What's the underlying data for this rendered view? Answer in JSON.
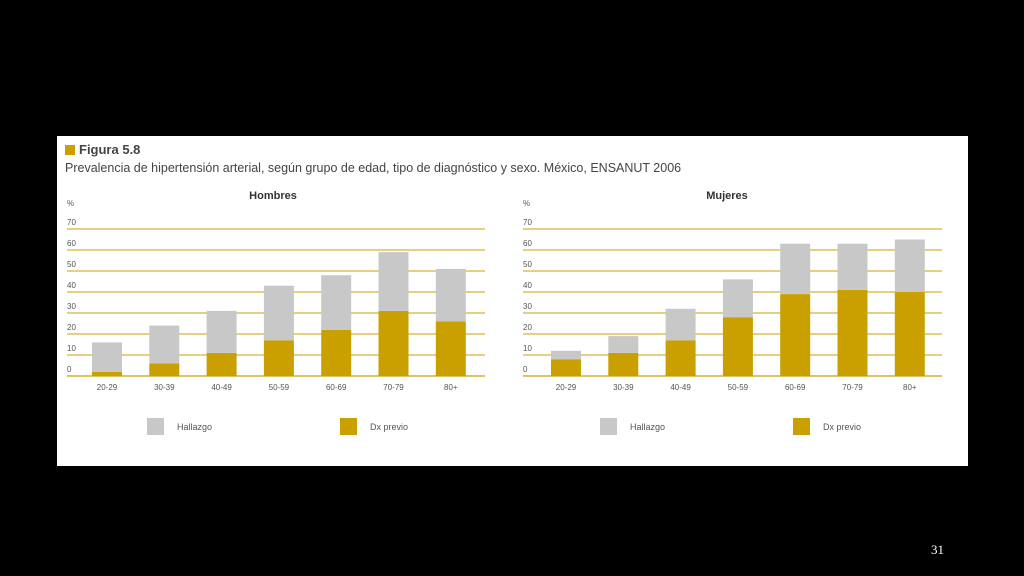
{
  "figure": {
    "label": "Figura 5.8",
    "subtitle": "Prevalencia de hipertensión arterial, según grupo de edad, tipo de diagnóstico y sexo. México, ENSANUT 2006"
  },
  "page_number": "31",
  "colors": {
    "hallazgo": "#c8c8c8",
    "dx_previo": "#c9a000",
    "grid": "#c9a000",
    "background": "#000000"
  },
  "chart_data": [
    {
      "type": "bar",
      "stacked": true,
      "title": "Hombres",
      "ylabel": "%",
      "ylim": [
        0,
        70
      ],
      "yticks": [
        0,
        10,
        20,
        30,
        40,
        50,
        60,
        70
      ],
      "categories": [
        "20-29",
        "30-39",
        "40-49",
        "50-59",
        "60-69",
        "70-79",
        "80+"
      ],
      "series": [
        {
          "name": "Hallazgo",
          "values": [
            14,
            18,
            20,
            26,
            26,
            28,
            25
          ]
        },
        {
          "name": "Dx previo",
          "values": [
            2,
            6,
            11,
            17,
            22,
            31,
            26
          ]
        }
      ],
      "grid": true,
      "legend": "bottom"
    },
    {
      "type": "bar",
      "stacked": true,
      "title": "Mujeres",
      "ylabel": "%",
      "ylim": [
        0,
        70
      ],
      "yticks": [
        0,
        10,
        20,
        30,
        40,
        50,
        60,
        70
      ],
      "categories": [
        "20-29",
        "30-39",
        "40-49",
        "50-59",
        "60-69",
        "70-79",
        "80+"
      ],
      "series": [
        {
          "name": "Hallazgo",
          "values": [
            4,
            8,
            15,
            18,
            24,
            22,
            25
          ]
        },
        {
          "name": "Dx previo",
          "values": [
            8,
            11,
            17,
            28,
            39,
            41,
            40
          ]
        }
      ],
      "grid": true,
      "legend": "bottom"
    }
  ]
}
